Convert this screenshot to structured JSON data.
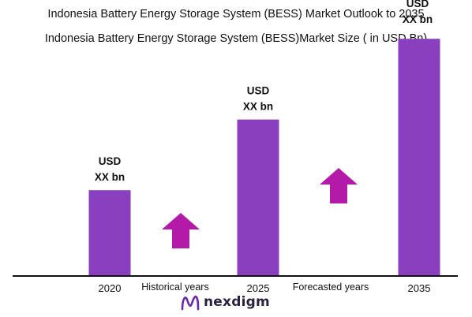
{
  "chart_data": {
    "type": "bar",
    "title": "Indonesia Battery Energy Storage System (BESS) Market Outlook to 2035",
    "subtitle": "Indonesia Battery Energy Storage System (BESS)Market Size ( in USD Bn)",
    "categories": [
      "2020",
      "2025",
      "2035"
    ],
    "values": [
      1.7,
      3.1,
      4.7
    ],
    "ylim": [
      0,
      5
    ],
    "data_labels": [
      [
        "USD",
        "XX bn"
      ],
      [
        "USD",
        "XX bn"
      ],
      [
        "USD",
        "XX bn"
      ]
    ],
    "period_labels": [
      "Historical years",
      "Forecasted years"
    ],
    "grid": false,
    "legend": "none",
    "bar_color": "#8a3fbf",
    "arrow_color": "#b31aa8"
  },
  "logo": {
    "text": "nexdigm",
    "icon": "nexdigm-logo-icon",
    "color": "#6a2aa8"
  }
}
